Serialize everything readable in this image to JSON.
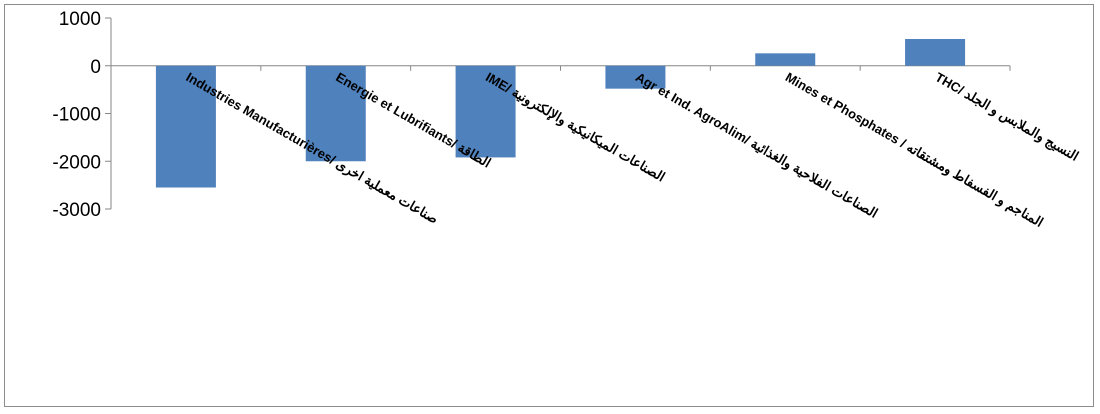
{
  "chart_data": {
    "type": "bar",
    "categories": [
      "Industries Manufacturières/ صناعات معملية اخرى",
      "Energie et Lubrifiants/ الطاقة",
      "IME/ الصناعات الميكانيكية والإلكترونية",
      "Agr et Ind. AgroAlim/ الصناعات الفلاحية والغذائية",
      "Mines et Phosphates / المناجم و الفسفاط ومشتقاته",
      "THC/ النسيج والملابس و الجلد"
    ],
    "values": [
      -2550,
      -2000,
      -1920,
      -480,
      260,
      560
    ],
    "ylim": [
      -3000,
      1000
    ],
    "yticks": [
      "1000",
      "0",
      "-1000",
      "-2000",
      "-3000"
    ],
    "bar_color": "#4f81bd",
    "grid": false,
    "legend": "none"
  }
}
